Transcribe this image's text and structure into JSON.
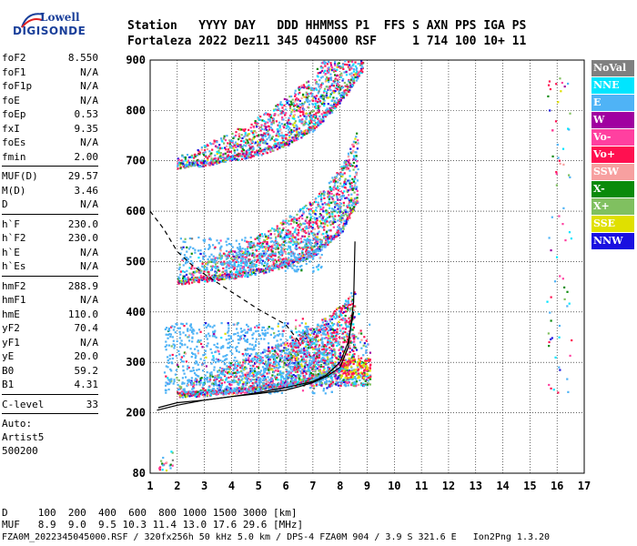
{
  "logo": {
    "line1": "Lowell",
    "line2": "DIGISONDE"
  },
  "header": {
    "row1": "Station   YYYY DAY   DDD HHMMSS P1  FFS S AXN PPS IGA PS",
    "row2": "Fortaleza 2022 Dez11 345 045000 RSF     1 714 100 10+ 11"
  },
  "params": {
    "group1": [
      {
        "key": "foF2",
        "val": "8.550"
      },
      {
        "key": "foF1",
        "val": "N/A"
      },
      {
        "key": "foF1p",
        "val": "N/A"
      },
      {
        "key": "foE",
        "val": "N/A"
      },
      {
        "key": "foEp",
        "val": "0.53"
      },
      {
        "key": "fxI",
        "val": "9.35"
      },
      {
        "key": "foEs",
        "val": "N/A"
      },
      {
        "key": "fmin",
        "val": "2.00"
      }
    ],
    "group2": [
      {
        "key": "MUF(D)",
        "val": "29.57"
      },
      {
        "key": "M(D)",
        "val": "3.46"
      },
      {
        "key": "D",
        "val": "N/A"
      }
    ],
    "group3": [
      {
        "key": "h`F",
        "val": "230.0"
      },
      {
        "key": "h`F2",
        "val": "230.0"
      },
      {
        "key": "h`E",
        "val": "N/A"
      },
      {
        "key": "h`Es",
        "val": "N/A"
      }
    ],
    "group4": [
      {
        "key": "hmF2",
        "val": "288.9"
      },
      {
        "key": "hmF1",
        "val": "N/A"
      },
      {
        "key": "hmE",
        "val": "110.0"
      },
      {
        "key": "yF2",
        "val": "70.4"
      },
      {
        "key": "yF1",
        "val": "N/A"
      },
      {
        "key": "yE",
        "val": "20.0"
      },
      {
        "key": "B0",
        "val": "59.2"
      },
      {
        "key": "B1",
        "val": "4.31"
      }
    ],
    "group5": [
      {
        "key": "C-level",
        "val": "33"
      }
    ],
    "auto": [
      "Auto:",
      "Artist5",
      "500200"
    ]
  },
  "legend": [
    {
      "label": "NoVal",
      "color": "#808080"
    },
    {
      "label": "NNE",
      "color": "#00e5ff"
    },
    {
      "label": "E",
      "color": "#4fb3f6"
    },
    {
      "label": "W",
      "color": "#a000a0"
    },
    {
      "label": "Vo-",
      "color": "#ff40a0"
    },
    {
      "label": "Vo+",
      "color": "#ff1050"
    },
    {
      "label": "SSW",
      "color": "#f7a0a0"
    },
    {
      "label": "X-",
      "color": "#0a8a0a"
    },
    {
      "label": "X+",
      "color": "#80c060"
    },
    {
      "label": "SSE",
      "color": "#e0e000"
    },
    {
      "label": "NNW",
      "color": "#1a10e0"
    }
  ],
  "chart_data": {
    "type": "scatter",
    "xlim": [
      1,
      17
    ],
    "ylim": [
      80,
      900
    ],
    "x_ticks": [
      1,
      2,
      3,
      4,
      5,
      6,
      7,
      8,
      9,
      10,
      11,
      12,
      13,
      14,
      15,
      16,
      17
    ],
    "y_ticks": [
      80,
      200,
      300,
      400,
      500,
      600,
      700,
      800,
      900
    ],
    "grid": true,
    "traces": [
      {
        "name": "profile",
        "x": [
          1.25,
          2,
          3,
          4,
          5,
          6,
          6.5,
          7,
          7.5,
          8,
          8.3,
          8.5,
          8.55
        ],
        "y": [
          205,
          215,
          225,
          232,
          238,
          245,
          252,
          260,
          272,
          290,
          330,
          420,
          540
        ],
        "style": "solid"
      },
      {
        "name": "h_trace",
        "x": [
          1.3,
          2,
          3,
          4,
          5,
          6,
          7,
          7.5,
          8,
          8.3,
          8.5
        ],
        "y": [
          210,
          220,
          225,
          232,
          240,
          250,
          262,
          275,
          300,
          340,
          400
        ],
        "style": "solid"
      },
      {
        "name": "profile_upper",
        "x": [
          1,
          1.5,
          2,
          2.5,
          3,
          4,
          5,
          6,
          6.5
        ],
        "y": [
          600,
          565,
          520,
          495,
          475,
          440,
          405,
          375,
          340
        ],
        "style": "dashed"
      }
    ],
    "echo_bands": [
      {
        "name": "F-echo",
        "x": [
          2,
          3,
          4,
          5,
          6,
          7,
          8,
          8.5
        ],
        "y": [
          235,
          238,
          242,
          248,
          255,
          265,
          285,
          310
        ]
      },
      {
        "name": "2F-echo",
        "x": [
          2,
          3,
          4,
          5,
          6,
          7,
          8,
          8.6
        ],
        "y": [
          460,
          465,
          470,
          480,
          495,
          515,
          560,
          620
        ]
      },
      {
        "name": "3F-echo",
        "x": [
          2,
          3,
          4,
          5,
          6,
          7,
          8,
          8.8
        ],
        "y": [
          690,
          695,
          705,
          715,
          735,
          765,
          820,
          880
        ]
      }
    ]
  },
  "footer": {
    "d_row": "D     100  200  400  600  800 1000 1500 3000 [km]",
    "muf_row": "MUF   8.9  9.0  9.5 10.3 11.4 13.0 17.6 29.6 [MHz]",
    "file_row": "FZA0M_2022345045000.RSF / 320fx256h 50 kHz 5.0 km / DPS-4 FZA0M 904 / 3.9 S 321.6 E   Ion2Png 1.3.20"
  }
}
